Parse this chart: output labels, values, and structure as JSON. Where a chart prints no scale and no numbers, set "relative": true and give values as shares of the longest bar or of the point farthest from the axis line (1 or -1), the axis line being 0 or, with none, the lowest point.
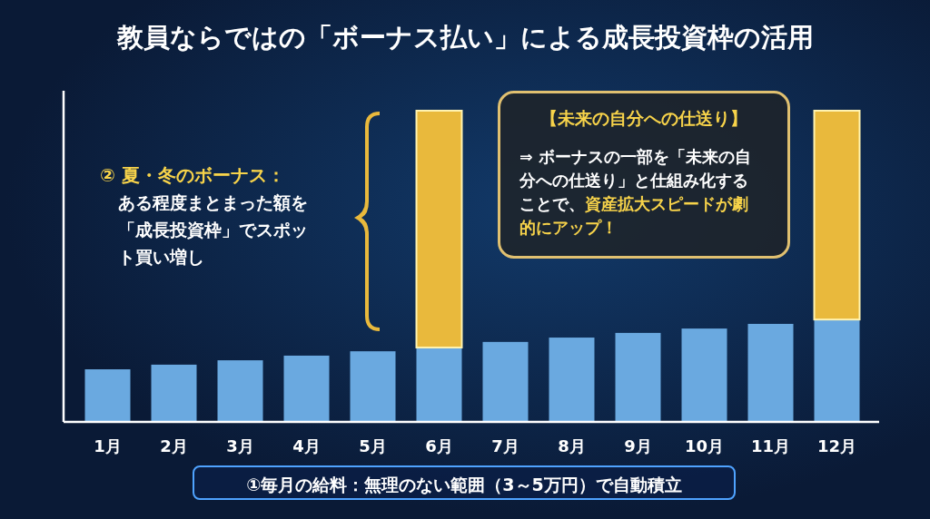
{
  "chart_data": {
    "type": "bar",
    "title": "教員ならではの「ボーナス払い」による成長投資枠の活用",
    "categories": [
      "1月",
      "2月",
      "3月",
      "4月",
      "5月",
      "6月",
      "7月",
      "8月",
      "9月",
      "10月",
      "11月",
      "12月"
    ],
    "stacked": true,
    "relative": true,
    "series": [
      {
        "color": "#6aa9e0",
        "values": [
          0.169,
          0.184,
          0.198,
          0.213,
          0.227,
          0.239,
          0.257,
          0.271,
          0.286,
          0.3,
          0.315,
          0.329
        ]
      },
      {
        "color": "#e9b93c",
        "values": [
          null,
          null,
          null,
          null,
          null,
          0.761,
          null,
          null,
          null,
          null,
          null,
          0.671
        ]
      }
    ],
    "annotations": [
      "② 夏・冬のボーナス：",
      "ある程度まとまった額を「成長投資枠」でスポット買い増し",
      "【未来の自分への仕送り】",
      "⇒ ボーナスの一部を「未来の自分への仕送り」と仕組み化することで、**資産拡大スピードが劇的にアップ！**",
      "①毎月の給料：無理のない範囲（3～5万円）で自動積立"
    ]
  }
}
